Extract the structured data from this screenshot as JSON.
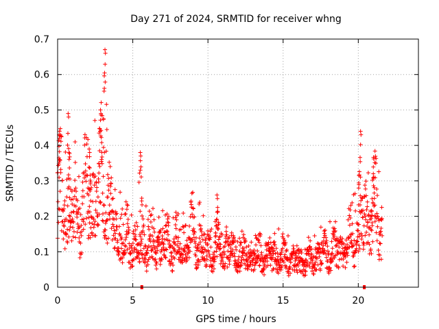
{
  "chart_data": {
    "type": "scatter",
    "title": "Day 271 of 2024, SRMTID for receiver whng",
    "xlabel": "GPS time / hours",
    "ylabel": "SRMTID / TECUs",
    "xlim": [
      0,
      24
    ],
    "ylim": [
      0,
      0.7
    ],
    "x_ticks": [
      0,
      5,
      10,
      15,
      20
    ],
    "x_tick_labels": [
      "0",
      "5",
      "10",
      "15",
      "20"
    ],
    "y_ticks": [
      0,
      0.1,
      0.2,
      0.3,
      0.4,
      0.5,
      0.6,
      0.7
    ],
    "y_tick_labels": [
      "0",
      "0.1",
      "0.2",
      "0.3",
      "0.4",
      "0.5",
      "0.6",
      "0.7"
    ],
    "grid": true,
    "marker": "plus",
    "color": "#ff0000",
    "approx_hourly_level": [
      {
        "hour": 0,
        "value": 0.25
      },
      {
        "hour": 1,
        "value": 0.2
      },
      {
        "hour": 2,
        "value": 0.24
      },
      {
        "hour": 3,
        "value": 0.28
      },
      {
        "hour": 4,
        "value": 0.14
      },
      {
        "hour": 5,
        "value": 0.12
      },
      {
        "hour": 6,
        "value": 0.12
      },
      {
        "hour": 7,
        "value": 0.11
      },
      {
        "hour": 8,
        "value": 0.12
      },
      {
        "hour": 9,
        "value": 0.14
      },
      {
        "hour": 10,
        "value": 0.1
      },
      {
        "hour": 11,
        "value": 0.1
      },
      {
        "hour": 12,
        "value": 0.09
      },
      {
        "hour": 13,
        "value": 0.09
      },
      {
        "hour": 14,
        "value": 0.09
      },
      {
        "hour": 15,
        "value": 0.08
      },
      {
        "hour": 16,
        "value": 0.07
      },
      {
        "hour": 17,
        "value": 0.08
      },
      {
        "hour": 18,
        "value": 0.1
      },
      {
        "hour": 19,
        "value": 0.1
      },
      {
        "hour": 20,
        "value": 0.16
      },
      {
        "hour": 21,
        "value": 0.22
      },
      {
        "hour": 21.6,
        "value": 0.16
      }
    ],
    "peaks": [
      {
        "hour": 0.1,
        "value": 0.43
      },
      {
        "hour": 0.7,
        "value": 0.49
      },
      {
        "hour": 2.1,
        "value": 0.39
      },
      {
        "hour": 2.85,
        "value": 0.5
      },
      {
        "hour": 3.15,
        "value": 0.67
      },
      {
        "hour": 5.5,
        "value": 0.38
      },
      {
        "hour": 10.6,
        "value": 0.26
      },
      {
        "hour": 20.15,
        "value": 0.44
      },
      {
        "hour": 21.0,
        "value": 0.32
      }
    ],
    "data_gap_markers": [
      5.6,
      20.4
    ],
    "legend": "none"
  }
}
